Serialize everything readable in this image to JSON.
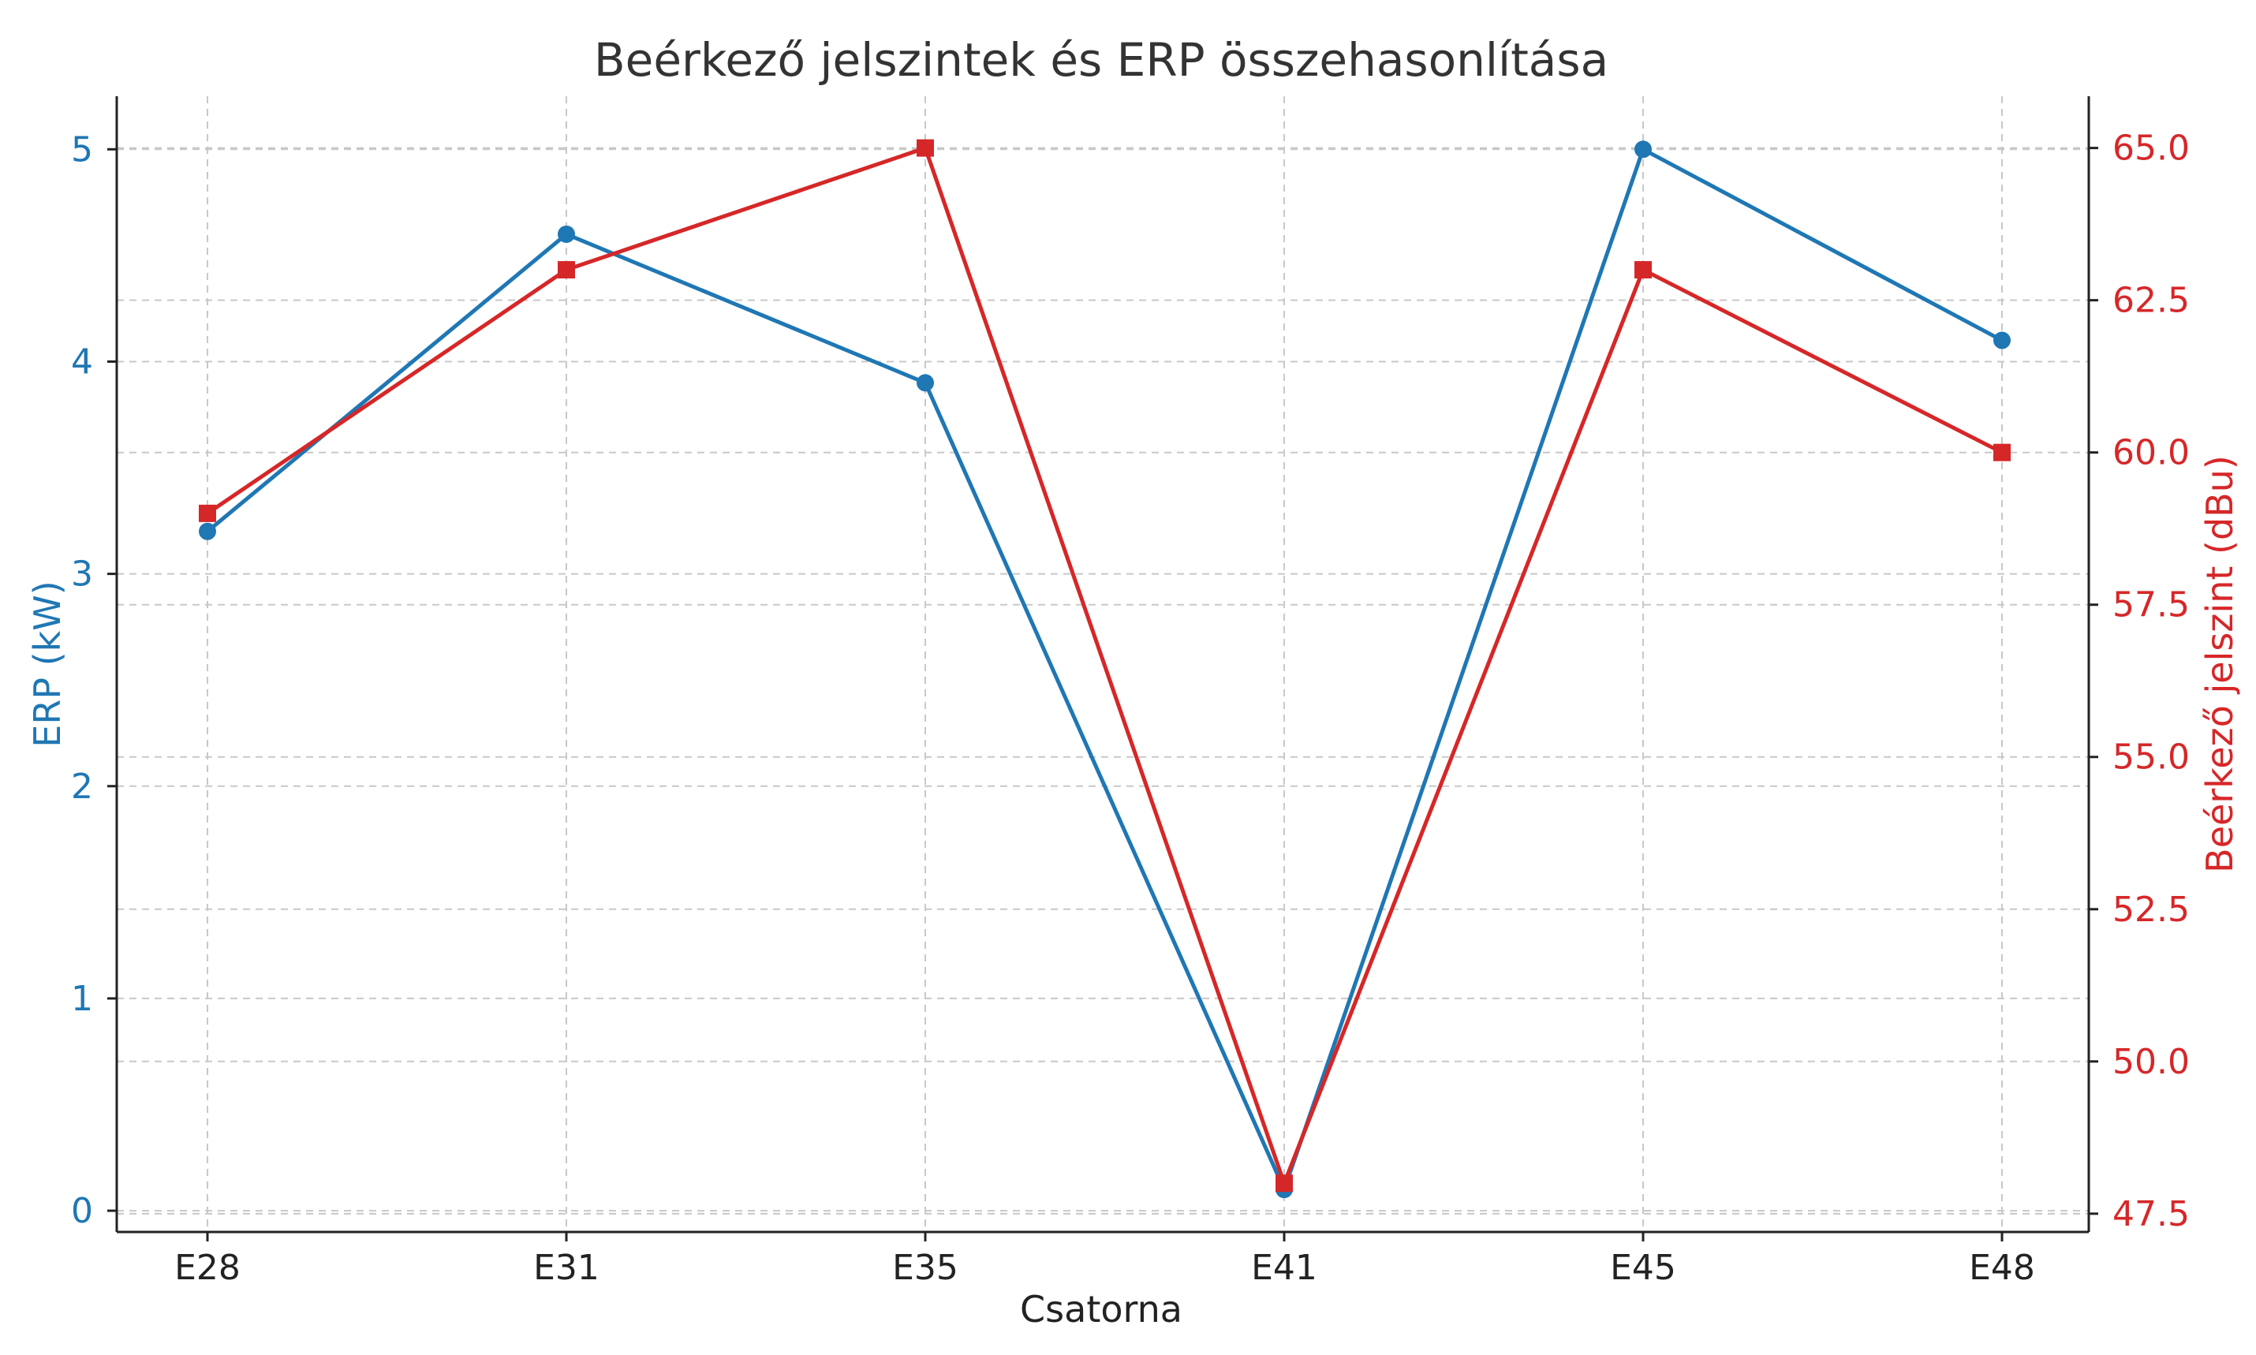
{
  "chart_data": {
    "type": "line",
    "title": "Beérkező jelszintek és ERP összehasonlítása",
    "xlabel": "Csatorna",
    "categories": [
      "E28",
      "E31",
      "E35",
      "E41",
      "E45",
      "E48"
    ],
    "y_left": {
      "label": "ERP (kW)",
      "ticks": [
        "0",
        "1",
        "2",
        "3",
        "4",
        "5"
      ],
      "tick_values": [
        0,
        1,
        2,
        3,
        4,
        5
      ],
      "range": [
        -0.1,
        5.25
      ],
      "color": "#1f77b4"
    },
    "y_right": {
      "label": "Beérkező jelszint (dBu)",
      "ticks": [
        "47.5",
        "50.0",
        "52.5",
        "55.0",
        "57.5",
        "60.0",
        "62.5",
        "65.0"
      ],
      "tick_values": [
        47.5,
        50.0,
        52.5,
        55.0,
        57.5,
        60.0,
        62.5,
        65.0
      ],
      "range": [
        47.2,
        65.85
      ],
      "color": "#d62728"
    },
    "series": [
      {
        "axis": "left",
        "marker": "circle",
        "color": "#1f77b4",
        "values": [
          3.2,
          4.6,
          3.9,
          0.1,
          5.0,
          4.1
        ]
      },
      {
        "axis": "right",
        "marker": "square",
        "color": "#d62728",
        "values": [
          59.0,
          63.0,
          65.0,
          48.0,
          63.0,
          60.0
        ]
      }
    ],
    "grid": true
  }
}
